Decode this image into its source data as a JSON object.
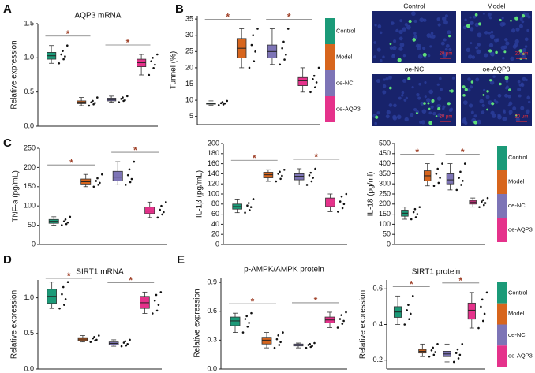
{
  "panel_labels": [
    "A",
    "B",
    "C",
    "D",
    "E"
  ],
  "micrographs": [
    {
      "label": "Control",
      "scale_bar": "20 μm"
    },
    {
      "label": "Model",
      "scale_bar": "20 μm"
    },
    {
      "label": "oe-NC",
      "scale_bar": "20 μm"
    },
    {
      "label": "oe-AQP3",
      "scale_bar": "20 μm"
    }
  ],
  "chart_data": [
    {
      "type": "box",
      "title": "AQP3 mRNA",
      "y_label": "Relative expression",
      "ylim": [
        0,
        1.5
      ],
      "yticks": [
        {
          "value": 0,
          "label": "0.0"
        },
        0.5,
        {
          "value": 1,
          "label": "1.0"
        },
        1.5
      ],
      "annotations": [
        "*",
        "*"
      ],
      "series": [
        {
          "color": "#1b9a78",
          "min": 0.92,
          "q1": 0.98,
          "median": 1.03,
          "q3": 1.08,
          "max": 1.18,
          "points": [
            0.92,
            0.98,
            1.02,
            1.05,
            1.1,
            1.18
          ]
        },
        {
          "color": "#d7651d",
          "min": 0.3,
          "q1": 0.33,
          "median": 0.35,
          "q3": 0.37,
          "max": 0.42,
          "points": [
            0.3,
            0.32,
            0.34,
            0.35,
            0.37,
            0.42
          ]
        },
        {
          "color": "#7d74b6",
          "min": 0.35,
          "q1": 0.37,
          "median": 0.39,
          "q3": 0.41,
          "max": 0.44,
          "points": [
            0.35,
            0.37,
            0.38,
            0.4,
            0.42,
            0.44
          ]
        },
        {
          "color": "#e5328b",
          "min": 0.75,
          "q1": 0.87,
          "median": 0.93,
          "q3": 0.98,
          "max": 1.05,
          "points": [
            0.75,
            0.85,
            0.9,
            0.95,
            1.0,
            1.05
          ]
        }
      ]
    },
    {
      "type": "box",
      "y_label": "Tunnel (%)",
      "ylim": [
        2.5,
        36
      ],
      "yticks": [
        5,
        10,
        15,
        20,
        25,
        30,
        35
      ],
      "annotations": [
        "*",
        "*"
      ],
      "series": [
        {
          "name": "Control",
          "color": "#1b9a78",
          "min": 8.5,
          "q1": 8.8,
          "median": 9,
          "q3": 9.2,
          "max": 9.8,
          "points": [
            8.5,
            8.7,
            9,
            9.1,
            9.4,
            9.8
          ]
        },
        {
          "name": "Model",
          "color": "#d7651d",
          "min": 20,
          "q1": 23,
          "median": 26,
          "q3": 29,
          "max": 32,
          "points": [
            20,
            22,
            25,
            27,
            30,
            32
          ]
        },
        {
          "name": "oe-NC",
          "color": "#7d74b6",
          "min": 21,
          "q1": 23,
          "median": 25,
          "q3": 27,
          "max": 32,
          "points": [
            21,
            22.5,
            24,
            26,
            28,
            32
          ]
        },
        {
          "name": "oe-AQP3",
          "color": "#e5328b",
          "min": 12.5,
          "q1": 14.5,
          "median": 16,
          "q3": 17,
          "max": 20,
          "points": [
            12.5,
            14,
            15.5,
            16.5,
            17.5,
            20
          ]
        }
      ]
    },
    {
      "type": "box",
      "y_label": "TNF-a (pg/mL)",
      "ylim": [
        0,
        250
      ],
      "yticks": [
        0,
        50,
        100,
        150,
        200,
        250
      ],
      "annotations": [
        "*",
        "*"
      ],
      "series": [
        {
          "color": "#1b9a78",
          "min": 50,
          "q1": 55,
          "median": 60,
          "q3": 65,
          "max": 72,
          "points": [
            50,
            53,
            57,
            60,
            65,
            72
          ]
        },
        {
          "color": "#d7651d",
          "min": 150,
          "q1": 157,
          "median": 163,
          "q3": 170,
          "max": 182,
          "points": [
            150,
            155,
            160,
            165,
            172,
            182
          ]
        },
        {
          "color": "#7d74b6",
          "min": 155,
          "q1": 165,
          "median": 175,
          "q3": 190,
          "max": 215,
          "points": [
            155,
            162,
            170,
            180,
            195,
            215
          ]
        },
        {
          "color": "#e5328b",
          "min": 70,
          "q1": 80,
          "median": 87,
          "q3": 97,
          "max": 110,
          "points": [
            70,
            78,
            84,
            90,
            100,
            110
          ]
        }
      ]
    },
    {
      "type": "box",
      "y_label": "IL-1β (pg/mL)",
      "ylim": [
        0,
        200
      ],
      "yticks": [
        0,
        20,
        40,
        60,
        80,
        100,
        120,
        140,
        160,
        180,
        200
      ],
      "annotations": [
        "*",
        "*"
      ],
      "series": [
        {
          "color": "#1b9a78",
          "min": 63,
          "q1": 70,
          "median": 75,
          "q3": 80,
          "max": 90,
          "points": [
            63,
            68,
            74,
            77,
            82,
            90
          ]
        },
        {
          "color": "#d7651d",
          "min": 125,
          "q1": 132,
          "median": 138,
          "q3": 143,
          "max": 148,
          "points": [
            125,
            130,
            136,
            140,
            144,
            148
          ]
        },
        {
          "color": "#7d74b6",
          "min": 118,
          "q1": 128,
          "median": 135,
          "q3": 140,
          "max": 150,
          "points": [
            118,
            125,
            132,
            137,
            142,
            150
          ]
        },
        {
          "color": "#e5328b",
          "min": 65,
          "q1": 75,
          "median": 82,
          "q3": 92,
          "max": 100,
          "points": [
            65,
            72,
            80,
            85,
            95,
            100
          ]
        }
      ]
    },
    {
      "type": "box",
      "y_label": "IL-18 (pg/ml)",
      "ylim": [
        0,
        500
      ],
      "yticks": [
        0,
        50,
        100,
        150,
        200,
        250,
        300,
        350,
        400,
        450,
        500
      ],
      "annotations": [
        "*",
        "*"
      ],
      "series": [
        {
          "name": "Control",
          "color": "#1b9a78",
          "min": 125,
          "q1": 140,
          "median": 155,
          "q3": 170,
          "max": 185,
          "points": [
            125,
            135,
            150,
            160,
            175,
            185
          ]
        },
        {
          "name": "Model",
          "color": "#d7651d",
          "min": 290,
          "q1": 315,
          "median": 340,
          "q3": 365,
          "max": 400,
          "points": [
            290,
            305,
            330,
            350,
            375,
            400
          ]
        },
        {
          "name": "oe-NC",
          "color": "#7d74b6",
          "min": 270,
          "q1": 300,
          "median": 320,
          "q3": 350,
          "max": 400,
          "points": [
            270,
            295,
            315,
            330,
            360,
            400
          ]
        },
        {
          "name": "oe-AQP3",
          "color": "#e5328b",
          "min": 185,
          "q1": 200,
          "median": 210,
          "q3": 218,
          "max": 230,
          "points": [
            185,
            195,
            205,
            212,
            220,
            230
          ]
        }
      ]
    },
    {
      "type": "box",
      "title": "SIRT1 mRNA",
      "y_label": "Relative expression",
      "ylim": [
        0,
        1.25
      ],
      "yticks": [
        {
          "value": 0,
          "label": "0.0"
        },
        0.5,
        {
          "value": 1,
          "label": "1.0"
        }
      ],
      "annotations": [
        "*",
        "*"
      ],
      "series": [
        {
          "color": "#1b9a78",
          "min": 0.85,
          "q1": 0.92,
          "median": 1.02,
          "q3": 1.12,
          "max": 1.22,
          "points": [
            0.85,
            0.9,
            0.98,
            1.05,
            1.15,
            1.22
          ]
        },
        {
          "color": "#d7651d",
          "min": 0.38,
          "q1": 0.4,
          "median": 0.42,
          "q3": 0.44,
          "max": 0.47,
          "points": [
            0.38,
            0.4,
            0.41,
            0.43,
            0.45,
            0.47
          ]
        },
        {
          "color": "#7d74b6",
          "min": 0.32,
          "q1": 0.34,
          "median": 0.36,
          "q3": 0.38,
          "max": 0.41,
          "points": [
            0.32,
            0.33,
            0.35,
            0.37,
            0.39,
            0.41
          ]
        },
        {
          "color": "#e5328b",
          "min": 0.78,
          "q1": 0.85,
          "median": 0.93,
          "q3": 1.02,
          "max": 1.08,
          "points": [
            0.78,
            0.82,
            0.9,
            0.96,
            1.04,
            1.08
          ]
        }
      ]
    },
    {
      "type": "box",
      "title": "p-AMPK/AMPK protein",
      "y_label": "Relative expression",
      "ylim": [
        0,
        0.95
      ],
      "yticks": [
        {
          "value": 0,
          "label": "0.0"
        },
        0.3,
        0.6,
        0.9
      ],
      "annotations": [
        "*",
        "*"
      ],
      "series": [
        {
          "color": "#1b9a78",
          "min": 0.38,
          "q1": 0.45,
          "median": 0.5,
          "q3": 0.54,
          "max": 0.58,
          "points": [
            0.38,
            0.44,
            0.48,
            0.52,
            0.55,
            0.58
          ]
        },
        {
          "color": "#d7651d",
          "min": 0.22,
          "q1": 0.26,
          "median": 0.3,
          "q3": 0.33,
          "max": 0.38,
          "points": [
            0.22,
            0.25,
            0.28,
            0.31,
            0.35,
            0.38
          ]
        },
        {
          "color": "#7d74b6",
          "min": 0.22,
          "q1": 0.24,
          "median": 0.25,
          "q3": 0.26,
          "max": 0.27,
          "points": [
            0.22,
            0.23,
            0.24,
            0.25,
            0.26,
            0.27
          ]
        },
        {
          "color": "#e5328b",
          "min": 0.43,
          "q1": 0.48,
          "median": 0.51,
          "q3": 0.54,
          "max": 0.59,
          "points": [
            0.43,
            0.47,
            0.5,
            0.52,
            0.56,
            0.59
          ]
        }
      ]
    },
    {
      "type": "box",
      "title": "SIRT1 protein",
      "y_label": "Relative expression",
      "ylim": [
        0.15,
        0.65
      ],
      "yticks": [
        0.2,
        0.4,
        0.6
      ],
      "annotations": [
        "*",
        "*"
      ],
      "series": [
        {
          "name": "Control",
          "color": "#1b9a78",
          "min": 0.4,
          "q1": 0.44,
          "median": 0.47,
          "q3": 0.5,
          "max": 0.56,
          "points": [
            0.4,
            0.43,
            0.46,
            0.48,
            0.51,
            0.56
          ]
        },
        {
          "name": "Model",
          "color": "#d7651d",
          "min": 0.22,
          "q1": 0.24,
          "median": 0.25,
          "q3": 0.26,
          "max": 0.29,
          "points": [
            0.22,
            0.23,
            0.245,
            0.255,
            0.27,
            0.29
          ]
        },
        {
          "name": "oe-NC",
          "color": "#7d74b6",
          "min": 0.19,
          "q1": 0.22,
          "median": 0.235,
          "q3": 0.25,
          "max": 0.29,
          "points": [
            0.19,
            0.21,
            0.23,
            0.24,
            0.26,
            0.29
          ]
        },
        {
          "name": "oe-AQP3",
          "color": "#e5328b",
          "min": 0.38,
          "q1": 0.43,
          "median": 0.48,
          "q3": 0.52,
          "max": 0.58,
          "points": [
            0.38,
            0.42,
            0.46,
            0.5,
            0.54,
            0.58
          ]
        }
      ]
    }
  ]
}
